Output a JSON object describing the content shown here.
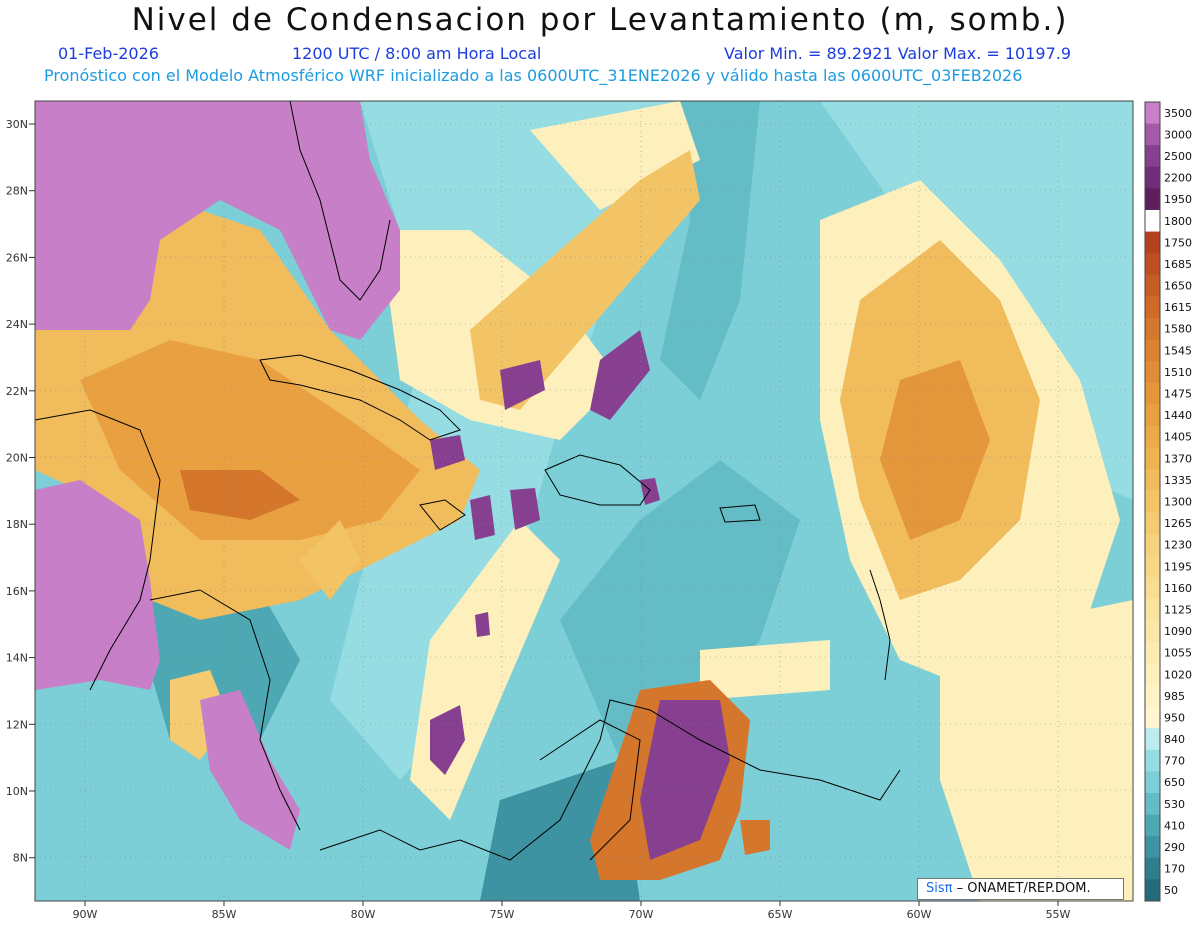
{
  "title": "Nivel de Condensacion por Levantamiento (m, somb.)",
  "date": "01-Feb-2026",
  "time": "1200 UTC / 8:00 am Hora Local",
  "minmax": "Valor Min. = 89.2921   Valor Max. = 10197.9",
  "model_info": "Pronóstico con el Modelo Atmosférico WRF inicializado a las 0600UTC_31ENE2026 y válido hasta las  0600UTC_03FEB2026",
  "credit": {
    "brand": "Sisπ",
    "text": " – ONAMET/REP.DOM."
  },
  "axes": {
    "lat_ticks": [
      "30N",
      "28N",
      "26N",
      "24N",
      "22N",
      "20N",
      "18N",
      "16N",
      "14N",
      "12N",
      "10N",
      "8N"
    ],
    "lon_ticks": [
      "90W",
      "85W",
      "80W",
      "75W",
      "70W",
      "65W",
      "60W",
      "55W"
    ]
  },
  "colorbar": {
    "levels": [
      "3500",
      "3000",
      "2500",
      "2200",
      "1950",
      "1800",
      "1750",
      "1685",
      "1650",
      "1615",
      "1580",
      "1545",
      "1510",
      "1475",
      "1440",
      "1405",
      "1370",
      "1335",
      "1300",
      "1265",
      "1230",
      "1195",
      "1160",
      "1125",
      "1090",
      "1055",
      "1020",
      "985",
      "950",
      "840",
      "770",
      "650",
      "530",
      "410",
      "290",
      "170",
      "50"
    ],
    "colors": [
      "#c77fc8",
      "#a35ba8",
      "#874090",
      "#6e2f78",
      "#5c1f5c",
      "#ffffff",
      "#b3421f",
      "#bd4f22",
      "#c65d25",
      "#cf6a29",
      "#d5762d",
      "#db8232",
      "#e08c36",
      "#e4963b",
      "#e8a040",
      "#ecaa48",
      "#efb352",
      "#f1bc5c",
      "#f3c466",
      "#f5cb71",
      "#f7d27c",
      "#f8d887",
      "#f9de92",
      "#fae39d",
      "#fbe8a8",
      "#fcecb2",
      "#fdf0bc",
      "#fef3c6",
      "#fff6cf",
      "#bcecee",
      "#96dde3",
      "#7ccfd6",
      "#63bcc6",
      "#4ea8b4",
      "#3d93a1",
      "#2f7e8e",
      "#236a7b"
    ]
  }
}
